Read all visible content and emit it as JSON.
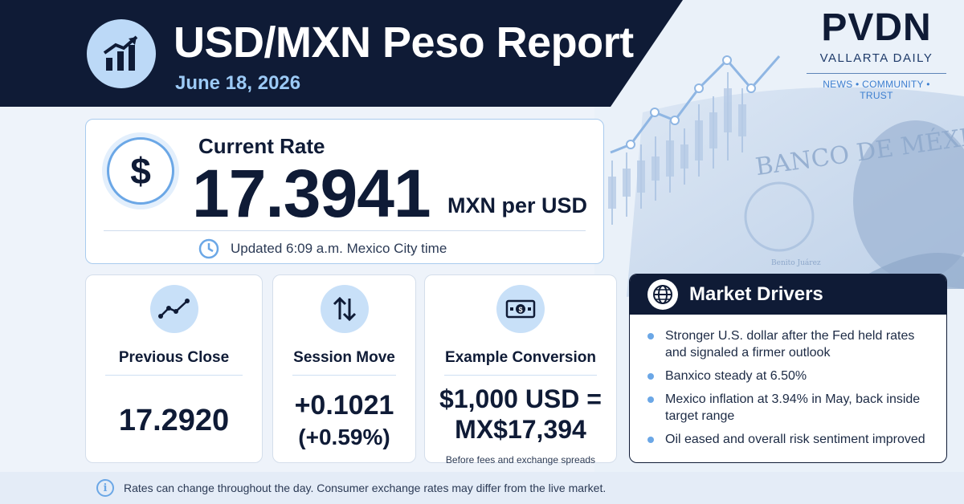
{
  "header": {
    "title": "USD/MXN Peso Report",
    "date": "June 18, 2026",
    "icon": "bar-chart-trend-icon"
  },
  "brand": {
    "name": "PVDN",
    "subtitle": "VALLARTA DAILY",
    "tagline": "NEWS • COMMUNITY • TRUST"
  },
  "background": {
    "banknote_text": "BANCO DE MÉXICO",
    "portrait_caption": "Benito Juárez"
  },
  "current_rate": {
    "label": "Current Rate",
    "value": "17.3941",
    "unit": "MXN per USD",
    "updated": "Updated 6:09 a.m. Mexico City time",
    "icon": "dollar-icon"
  },
  "stats": [
    {
      "title": "Previous Close",
      "value": "17.2920",
      "icon": "line-trend-icon"
    },
    {
      "title": "Session Move",
      "value": "+0.1021",
      "value_sub": "(+0.59%)",
      "icon": "up-down-arrows-icon"
    },
    {
      "title": "Example Conversion",
      "value": "$1,000 USD =",
      "value_sub": "MX$17,394",
      "note": "Before fees and exchange spreads",
      "icon": "banknote-icon"
    }
  ],
  "drivers": {
    "title": "Market Drivers",
    "items": [
      "Stronger U.S. dollar after the Fed held rates and signaled a firmer outlook",
      "Banxico steady at 6.50%",
      "Mexico inflation at 3.94% in May, back inside target range",
      "Oil eased and overall risk sentiment improved"
    ]
  },
  "footer": {
    "text": "Rates can change throughout the day. Consumer exchange rates may differ from the live market."
  },
  "colors": {
    "navy": "#0f1b36",
    "accent_blue": "#6ba7e6",
    "light_blue": "#c8e0f8",
    "background": "#eef3fa"
  }
}
